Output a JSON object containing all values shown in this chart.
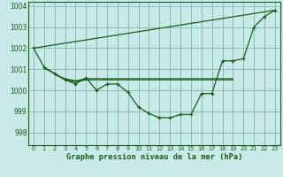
{
  "background_color": "#c8eae8",
  "grid_color": "#88bbbb",
  "line_color": "#1a5c1a",
  "title": "Graphe pression niveau de la mer (hPa)",
  "xlim": [
    -0.5,
    23.5
  ],
  "ylim": [
    997.4,
    1004.2
  ],
  "yticks": [
    998,
    999,
    1000,
    1001,
    1002,
    1003,
    1004
  ],
  "xticks": [
    0,
    1,
    2,
    3,
    4,
    5,
    6,
    7,
    8,
    9,
    10,
    11,
    12,
    13,
    14,
    15,
    16,
    17,
    18,
    19,
    20,
    21,
    22,
    23
  ],
  "series_main": [
    1002.0,
    1001.1,
    1000.8,
    1000.5,
    1000.3,
    1000.6,
    1000.0,
    1000.3,
    1000.3,
    999.9,
    999.2,
    998.9,
    998.7,
    998.7,
    998.85,
    998.85,
    999.85,
    999.85,
    1001.4,
    1001.4,
    1001.5,
    1003.0,
    1003.5,
    1003.8
  ],
  "series_diag": [
    [
      0,
      1002.0
    ],
    [
      23,
      1003.8
    ]
  ],
  "series_flat1_x": [
    2,
    3,
    4,
    5,
    6,
    7,
    8,
    9,
    10,
    11,
    12,
    13,
    14,
    15,
    16,
    17,
    18,
    19
  ],
  "series_flat1_y": [
    1000.75,
    1000.55,
    1000.45,
    1000.55,
    1000.55,
    1000.55,
    1000.55,
    1000.55,
    1000.55,
    1000.55,
    1000.55,
    1000.55,
    1000.55,
    1000.55,
    1000.55,
    1000.55,
    1000.55,
    1000.55
  ],
  "series_flat2_x": [
    1,
    2,
    3,
    4,
    5,
    6,
    7,
    8,
    9,
    10,
    11,
    12,
    13,
    14,
    15,
    16,
    17,
    18,
    19
  ],
  "series_flat2_y": [
    1001.05,
    1000.8,
    1000.5,
    1000.4,
    1000.5,
    1000.5,
    1000.5,
    1000.5,
    1000.5,
    1000.5,
    1000.5,
    1000.5,
    1000.5,
    1000.5,
    1000.5,
    1000.5,
    1000.5,
    1000.5,
    1000.5
  ]
}
